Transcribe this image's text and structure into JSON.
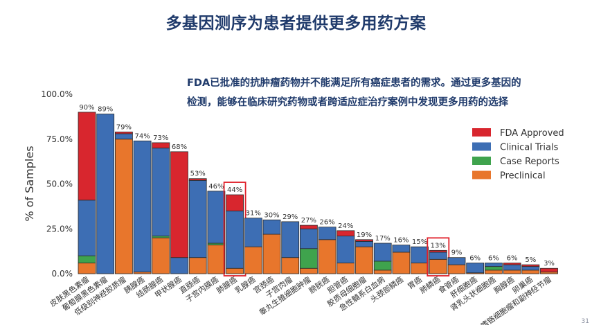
{
  "slide": {
    "title": "多基因测序为患者提供更多用药方案",
    "note_line1": "FDA已批准的抗肿瘤药物并不能满足所有癌症患者的需求。通过更多基因的",
    "note_line2": "检测，能够在临床研究药物或者跨适应症治疗案例中发现更多用药的选择",
    "page_number": "31"
  },
  "chart_data": {
    "type": "bar",
    "stacked": true,
    "ylabel": "% of Samples",
    "ylim": [
      0,
      100
    ],
    "yticks": [
      "0.0%",
      "25.0%",
      "50.0%",
      "75.0%",
      "100.0%"
    ],
    "legend_position": "right",
    "categories": [
      "皮肤黑色素瘤",
      "葡萄膜黑色素瘤",
      "低级别神经胶质瘤",
      "胰腺癌",
      "结肠腺癌",
      "甲状腺癌",
      "直肠癌",
      "子宫内膜癌",
      "肺腺癌",
      "乳腺癌",
      "宫颈癌",
      "子宫肉瘤",
      "睾丸生殖细胞肿瘤",
      "膀胱癌",
      "胆管癌",
      "胶质母细胞瘤",
      "急性髓系白血病",
      "头颈部鳞癌",
      "胃癌",
      "肺鳞癌",
      "食管癌",
      "肝细胞癌",
      "肾乳头状细胞癌",
      "胸腺癌",
      "卵巢癌",
      "嗜铬细胞瘤和副神经节瘤"
    ],
    "totals": [
      "90%",
      "89%",
      "79%",
      "74%",
      "73%",
      "68%",
      "53%",
      "46%",
      "44%",
      "31%",
      "30%",
      "29%",
      "27%",
      "26%",
      "24%",
      "19%",
      "17%",
      "16%",
      "15%",
      "13%",
      "9%",
      "6%",
      "6%",
      "6%",
      "5%",
      "3%"
    ],
    "highlighted": [
      "肺腺癌",
      "肺鳞癌"
    ],
    "series": [
      {
        "name": "Preclinical",
        "color": "#e8762c",
        "values": [
          6,
          0,
          75,
          1,
          20,
          0,
          9,
          16,
          3,
          15,
          22,
          9,
          3,
          19,
          6,
          15,
          2,
          12,
          6,
          8,
          5,
          0.5,
          2,
          2,
          2,
          1
        ]
      },
      {
        "name": "Case Reports",
        "color": "#3fa34d",
        "values": [
          4,
          0,
          0,
          0,
          1,
          0,
          0,
          1,
          0,
          0,
          0,
          0,
          11,
          0,
          0,
          0,
          5,
          0,
          0,
          0,
          0,
          0,
          2,
          0,
          0,
          0
        ]
      },
      {
        "name": "Clinical Trials",
        "color": "#3d6eb4",
        "values": [
          31,
          89,
          3,
          73,
          49,
          9,
          43,
          29,
          32,
          16,
          8,
          20,
          11,
          7,
          15,
          3,
          10,
          4,
          9,
          4,
          4,
          5.5,
          2,
          3,
          2,
          0
        ]
      },
      {
        "name": "FDA Approved",
        "color": "#d8262e",
        "values": [
          49,
          0,
          1,
          0,
          3,
          59,
          1,
          0,
          9,
          0,
          0,
          0,
          2,
          0,
          3,
          1,
          0,
          0,
          0,
          1,
          0,
          0,
          0,
          1,
          1,
          2
        ]
      }
    ],
    "legend_order": [
      "FDA Approved",
      "Clinical Trials",
      "Case Reports",
      "Preclinical"
    ]
  }
}
